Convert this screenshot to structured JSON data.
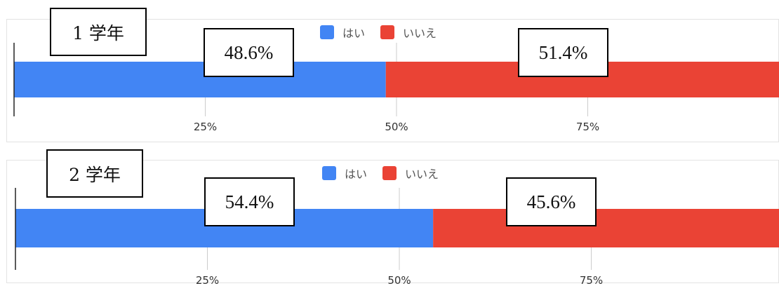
{
  "colors": {
    "yes": "#4285f4",
    "no": "#ea4335",
    "axis": "#222222",
    "grid": "#cccccc",
    "tick_text": "#333333"
  },
  "legend": {
    "yes": "はい",
    "no": "いいえ"
  },
  "chart_data": [
    {
      "type": "bar",
      "orientation": "horizontal",
      "stacked": true,
      "title": "",
      "grade": "1 学年",
      "xlim": [
        0,
        100
      ],
      "ticks": [
        "25%",
        "50%",
        "75%"
      ],
      "tick_values": [
        25,
        50,
        75
      ],
      "grid": true,
      "legend_position": "top",
      "series": [
        {
          "name": "はい",
          "value": 48.6,
          "label": "48.6%"
        },
        {
          "name": "いいえ",
          "value": 51.4,
          "label": "51.4%"
        }
      ]
    },
    {
      "type": "bar",
      "orientation": "horizontal",
      "stacked": true,
      "title": "",
      "grade": "2 学年",
      "xlim": [
        0,
        100
      ],
      "ticks": [
        "25%",
        "50%",
        "75%"
      ],
      "tick_values": [
        25,
        50,
        75
      ],
      "grid": true,
      "legend_position": "top",
      "series": [
        {
          "name": "はい",
          "value": 54.4,
          "label": "54.4%"
        },
        {
          "name": "いいえ",
          "value": 45.6,
          "label": "45.6%"
        }
      ]
    }
  ]
}
